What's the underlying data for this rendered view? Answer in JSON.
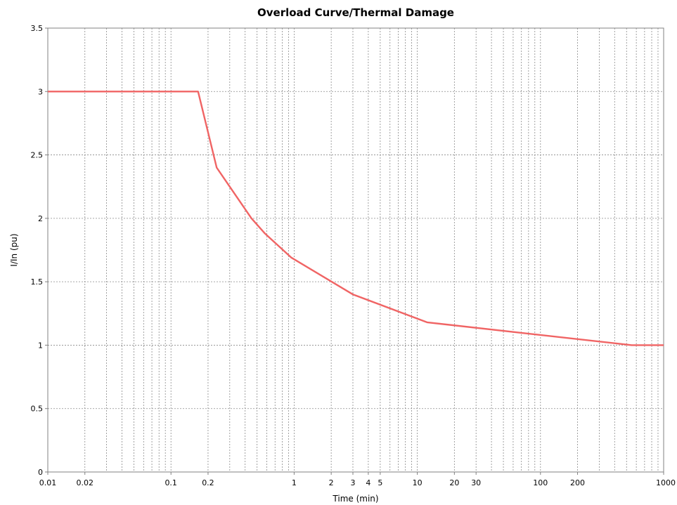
{
  "chart_data": {
    "type": "line",
    "title": "Overload Curve/Thermal Damage",
    "xlabel": "Time (min)",
    "ylabel": "I/In (pu)",
    "x_scale": "log",
    "xlim": [
      0.01,
      1000
    ],
    "ylim": [
      0,
      3.5
    ],
    "x_ticks": [
      {
        "value": 0.01,
        "label": "0.01"
      },
      {
        "value": 0.02,
        "label": "0.02"
      },
      {
        "value": 0.1,
        "label": "0.1"
      },
      {
        "value": 0.2,
        "label": "0.2"
      },
      {
        "value": 1,
        "label": "1"
      },
      {
        "value": 2,
        "label": "2"
      },
      {
        "value": 3,
        "label": "3"
      },
      {
        "value": 4,
        "label": "4"
      },
      {
        "value": 5,
        "label": "5"
      },
      {
        "value": 10,
        "label": "10"
      },
      {
        "value": 20,
        "label": "20"
      },
      {
        "value": 30,
        "label": "30"
      },
      {
        "value": 100,
        "label": "100"
      },
      {
        "value": 200,
        "label": "200"
      },
      {
        "value": 1000,
        "label": "1000"
      }
    ],
    "y_ticks": [
      {
        "value": 0,
        "label": "0"
      },
      {
        "value": 0.5,
        "label": "0.5"
      },
      {
        "value": 1,
        "label": "1"
      },
      {
        "value": 1.5,
        "label": "1.5"
      },
      {
        "value": 2,
        "label": "2"
      },
      {
        "value": 2.5,
        "label": "2.5"
      },
      {
        "value": 3,
        "label": "3"
      },
      {
        "value": 3.5,
        "label": "3.5"
      }
    ],
    "grid": true,
    "legend": "none",
    "series": [
      {
        "color": "#f06464",
        "points": [
          [
            0.01,
            3.0
          ],
          [
            0.166,
            3.0
          ],
          [
            0.235,
            2.4
          ],
          [
            0.45,
            2.0
          ],
          [
            0.58,
            1.88
          ],
          [
            0.95,
            1.69
          ],
          [
            3.0,
            1.4
          ],
          [
            12.0,
            1.18
          ],
          [
            550,
            1.0
          ],
          [
            1000,
            1.0
          ]
        ]
      }
    ]
  }
}
